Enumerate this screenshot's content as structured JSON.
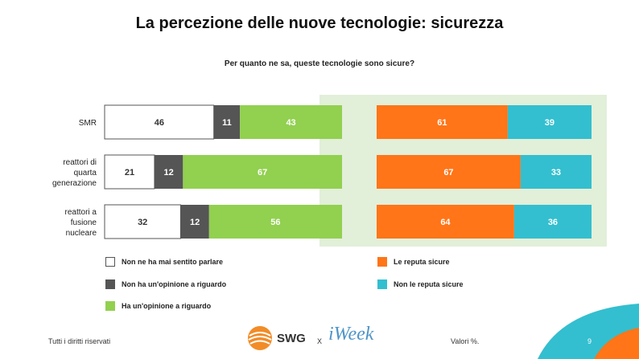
{
  "title": "La percezione delle nuove tecnologie: sicurezza",
  "subtitle": "Per quanto ne sa, queste tecnologie sono sicure?",
  "colors": {
    "mai_sentito": "#ffffff",
    "non_opinione": "#555555",
    "opinione": "#92d050",
    "sicure": "#ff7518",
    "non_sicure": "#33bfcf",
    "panel": "#e2efd9"
  },
  "chart_data": [
    {
      "type": "bar",
      "orientation": "horizontal",
      "stacked": true,
      "categories": [
        "SMR",
        "reattori di quarta generazione",
        "reattori a fusione nucleare"
      ],
      "category_lines": [
        [
          "SMR"
        ],
        [
          "reattori di",
          "quarta",
          "generazione"
        ],
        [
          "reattori a",
          "fusione",
          "nucleare"
        ]
      ],
      "series": [
        {
          "name": "Non ne ha mai sentito parlare",
          "values": [
            46,
            21,
            32
          ]
        },
        {
          "name": "Non ha un'opinione a riguardo",
          "values": [
            11,
            12,
            12
          ]
        },
        {
          "name": "Ha un'opinione a riguardo",
          "values": [
            43,
            67,
            56
          ]
        }
      ],
      "xlim": [
        0,
        100
      ]
    },
    {
      "type": "bar",
      "orientation": "horizontal",
      "stacked": true,
      "categories": [
        "SMR",
        "reattori di quarta generazione",
        "reattori a fusione nucleare"
      ],
      "series": [
        {
          "name": "Le reputa sicure",
          "values": [
            61,
            67,
            64
          ]
        },
        {
          "name": "Non le reputa sicure",
          "values": [
            39,
            33,
            36
          ]
        }
      ],
      "xlim": [
        0,
        100
      ]
    }
  ],
  "legend": [
    {
      "label": "Non ne ha mai sentito parlare",
      "color": "#ffffff"
    },
    {
      "label": "Non ha un'opinione a riguardo",
      "color": "#555555"
    },
    {
      "label": "Ha un'opinione a riguardo",
      "color": "#92d050"
    },
    {
      "label": "Le reputa sicure",
      "color": "#ff7518"
    },
    {
      "label": "Non le reputa sicure",
      "color": "#33bfcf"
    }
  ],
  "footer": {
    "rights": "Tutti i diritti riservati",
    "logo_swg": "SWG",
    "separator": "X",
    "logo_iweek": "iWeek",
    "note": "Valori %.",
    "page": "9"
  }
}
